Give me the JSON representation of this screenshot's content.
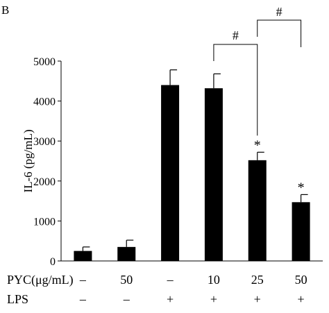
{
  "panel_label": "B",
  "chart_data": {
    "type": "bar",
    "title": "",
    "ylabel": "IL-6 (pg/mL)",
    "ylim": [
      0,
      5000
    ],
    "yticks": [
      0,
      1000,
      2000,
      3000,
      4000,
      5000
    ],
    "categories": [
      "1",
      "2",
      "3",
      "4",
      "5",
      "6"
    ],
    "values": [
      250,
      350,
      4400,
      4320,
      2520,
      1470
    ],
    "errors": [
      100,
      170,
      380,
      360,
      200,
      190
    ],
    "significance": [
      "",
      "",
      "",
      "",
      "*",
      "*"
    ],
    "bracket_symbol": "#",
    "brackets": [
      {
        "from": 3,
        "to": 4,
        "label": "#"
      },
      {
        "from": 4,
        "to": 5,
        "label": "#"
      }
    ],
    "rows": [
      {
        "label": "PYC(μg/mL)",
        "values": [
          "–",
          "50",
          "–",
          "10",
          "25",
          "50"
        ]
      },
      {
        "label": "LPS",
        "values": [
          "–",
          "–",
          "+",
          "+",
          "+",
          "+"
        ]
      }
    ],
    "color": "#000000"
  }
}
